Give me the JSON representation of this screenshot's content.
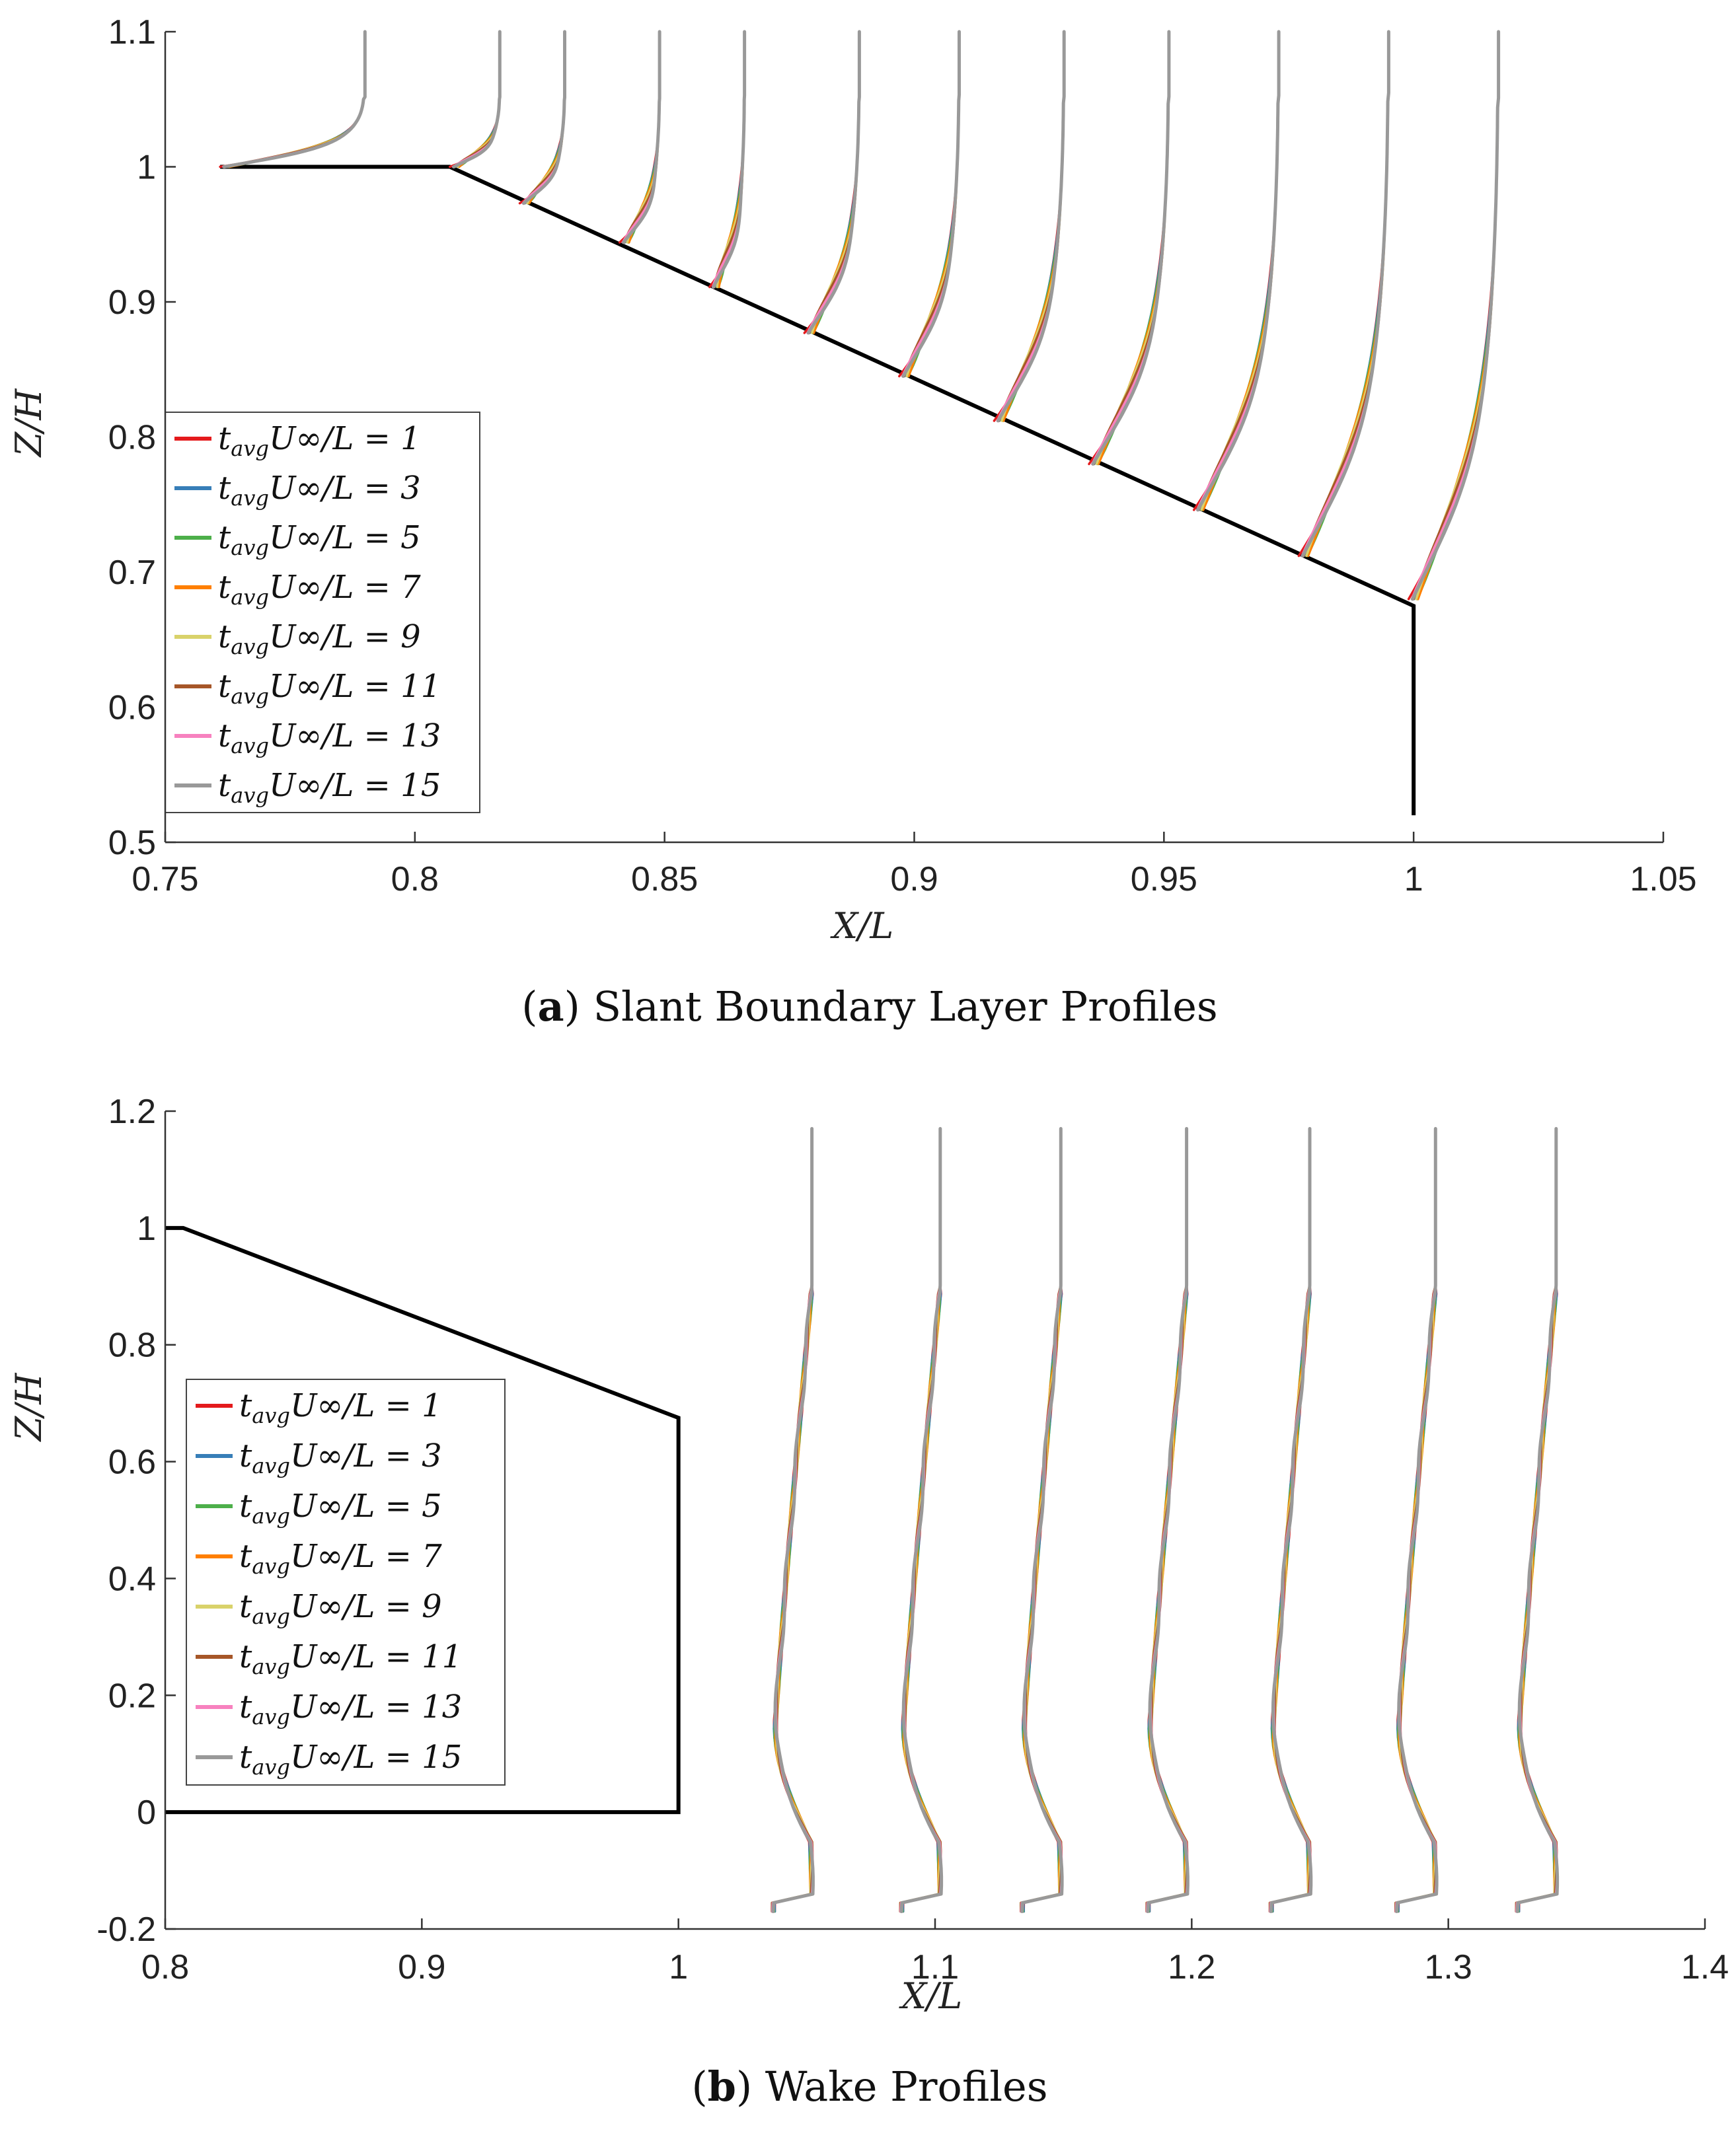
{
  "colors": {
    "t1": "#e41a1c",
    "t3": "#377eb8",
    "t5": "#4daf4a",
    "t7": "#ff7f00",
    "t9": "#d9d26a",
    "t11": "#a65628",
    "t13": "#f781bf",
    "t15": "#999999",
    "geometry": "#000000"
  },
  "chart_data": [
    {
      "type": "line",
      "panel": "a",
      "caption_letter": "a",
      "caption_text": "Slant Boundary Layer Profiles",
      "xlabel": "X/L",
      "ylabel": "Z/H",
      "xlim": [
        0.75,
        1.05
      ],
      "ylim": [
        0.5,
        1.1
      ],
      "xticks": [
        "0.75",
        "0.8",
        "0.85",
        "0.9",
        "0.95",
        "1",
        "1.05"
      ],
      "yticks": [
        "0.5",
        "0.6",
        "0.7",
        "0.8",
        "0.9",
        "1",
        "1.1"
      ],
      "xtick_values": [
        0.75,
        0.8,
        0.85,
        0.9,
        0.95,
        1.0,
        1.05
      ],
      "ytick_values": [
        0.5,
        0.6,
        0.7,
        0.8,
        0.9,
        1.0,
        1.1
      ],
      "legend": [
        {
          "key": "t1",
          "label": "t_avg U∞/L = 1"
        },
        {
          "key": "t3",
          "label": "t_avg U∞/L = 3"
        },
        {
          "key": "t5",
          "label": "t_avg U∞/L = 5"
        },
        {
          "key": "t7",
          "label": "t_avg U∞/L = 7"
        },
        {
          "key": "t9",
          "label": "t_avg U∞/L = 9"
        },
        {
          "key": "t11",
          "label": "t_avg U∞/L = 11"
        },
        {
          "key": "t13",
          "label": "t_avg U∞/L = 13"
        },
        {
          "key": "t15",
          "label": "t_avg U∞/L = 15"
        }
      ],
      "legend_position": "left",
      "body_outline": {
        "x": [
          0.761,
          0.807,
          1.0,
          1.0
        ],
        "y": [
          1.0,
          1.0,
          0.675,
          0.52
        ]
      },
      "profiles": [
        {
          "x0": 0.761,
          "y0": 1.0,
          "shift": 0.029
        },
        {
          "x0": 0.807,
          "y0": 1.0,
          "shift": 0.01
        },
        {
          "x0": 0.821,
          "y0": 0.973,
          "shift": 0.009
        },
        {
          "x0": 0.841,
          "y0": 0.944,
          "shift": 0.008
        },
        {
          "x0": 0.859,
          "y0": 0.911,
          "shift": 0.007
        },
        {
          "x0": 0.878,
          "y0": 0.877,
          "shift": 0.011
        },
        {
          "x0": 0.897,
          "y0": 0.845,
          "shift": 0.012
        },
        {
          "x0": 0.916,
          "y0": 0.812,
          "shift": 0.014
        },
        {
          "x0": 0.935,
          "y0": 0.78,
          "shift": 0.016
        },
        {
          "x0": 0.956,
          "y0": 0.746,
          "shift": 0.017
        },
        {
          "x0": 0.977,
          "y0": 0.712,
          "shift": 0.018
        },
        {
          "x0": 0.999,
          "y0": 0.68,
          "shift": 0.018
        }
      ]
    },
    {
      "type": "line",
      "panel": "b",
      "caption_letter": "b",
      "caption_text": "Wake Profiles",
      "xlabel": "X/L",
      "ylabel": "Z/H",
      "xlim": [
        0.8,
        1.4
      ],
      "ylim": [
        -0.2,
        1.2
      ],
      "xticks": [
        "0.8",
        "0.9",
        "1",
        "1.1",
        "1.2",
        "1.3",
        "1.4"
      ],
      "yticks": [
        "-0.2",
        "0",
        "0.2",
        "0.4",
        "0.6",
        "0.8",
        "1",
        "1.2"
      ],
      "xtick_values": [
        0.8,
        0.9,
        1.0,
        1.1,
        1.2,
        1.3,
        1.4
      ],
      "ytick_values": [
        -0.2,
        0.0,
        0.2,
        0.4,
        0.6,
        0.8,
        1.0,
        1.2
      ],
      "legend": [
        {
          "key": "t1",
          "label": "t_avg U∞/L = 1"
        },
        {
          "key": "t3",
          "label": "t_avg U∞/L = 3"
        },
        {
          "key": "t5",
          "label": "t_avg U∞/L = 5"
        },
        {
          "key": "t7",
          "label": "t_avg U∞/L = 7"
        },
        {
          "key": "t9",
          "label": "t_avg U∞/L = 9"
        },
        {
          "key": "t11",
          "label": "t_avg U∞/L = 11"
        },
        {
          "key": "t13",
          "label": "t_avg U∞/L = 13"
        },
        {
          "key": "t15",
          "label": "t_avg U∞/L = 15"
        }
      ],
      "legend_position": "left",
      "body_outline": {
        "x": [
          0.8,
          0.807,
          1.0,
          1.0,
          0.8
        ],
        "y": [
          1.0,
          1.0,
          0.675,
          0.0,
          0.0
        ]
      },
      "profiles": [
        {
          "x0": 1.037,
          "shift": 0.015
        },
        {
          "x0": 1.087,
          "shift": 0.015
        },
        {
          "x0": 1.134,
          "shift": 0.015
        },
        {
          "x0": 1.183,
          "shift": 0.015
        },
        {
          "x0": 1.231,
          "shift": 0.015
        },
        {
          "x0": 1.28,
          "shift": 0.015
        },
        {
          "x0": 1.327,
          "shift": 0.015
        }
      ]
    }
  ]
}
